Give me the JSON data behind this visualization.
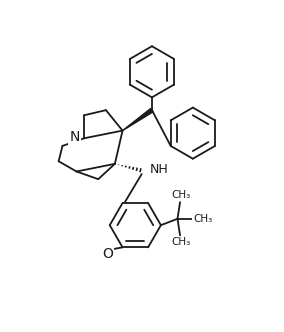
{
  "bg_color": "#ffffff",
  "line_color": "#1a1a1a",
  "lw": 1.3,
  "figsize": [
    2.84,
    3.32
  ],
  "dpi": 100,
  "xlim": [
    0,
    8.5
  ],
  "ylim": [
    0,
    10.0
  ]
}
